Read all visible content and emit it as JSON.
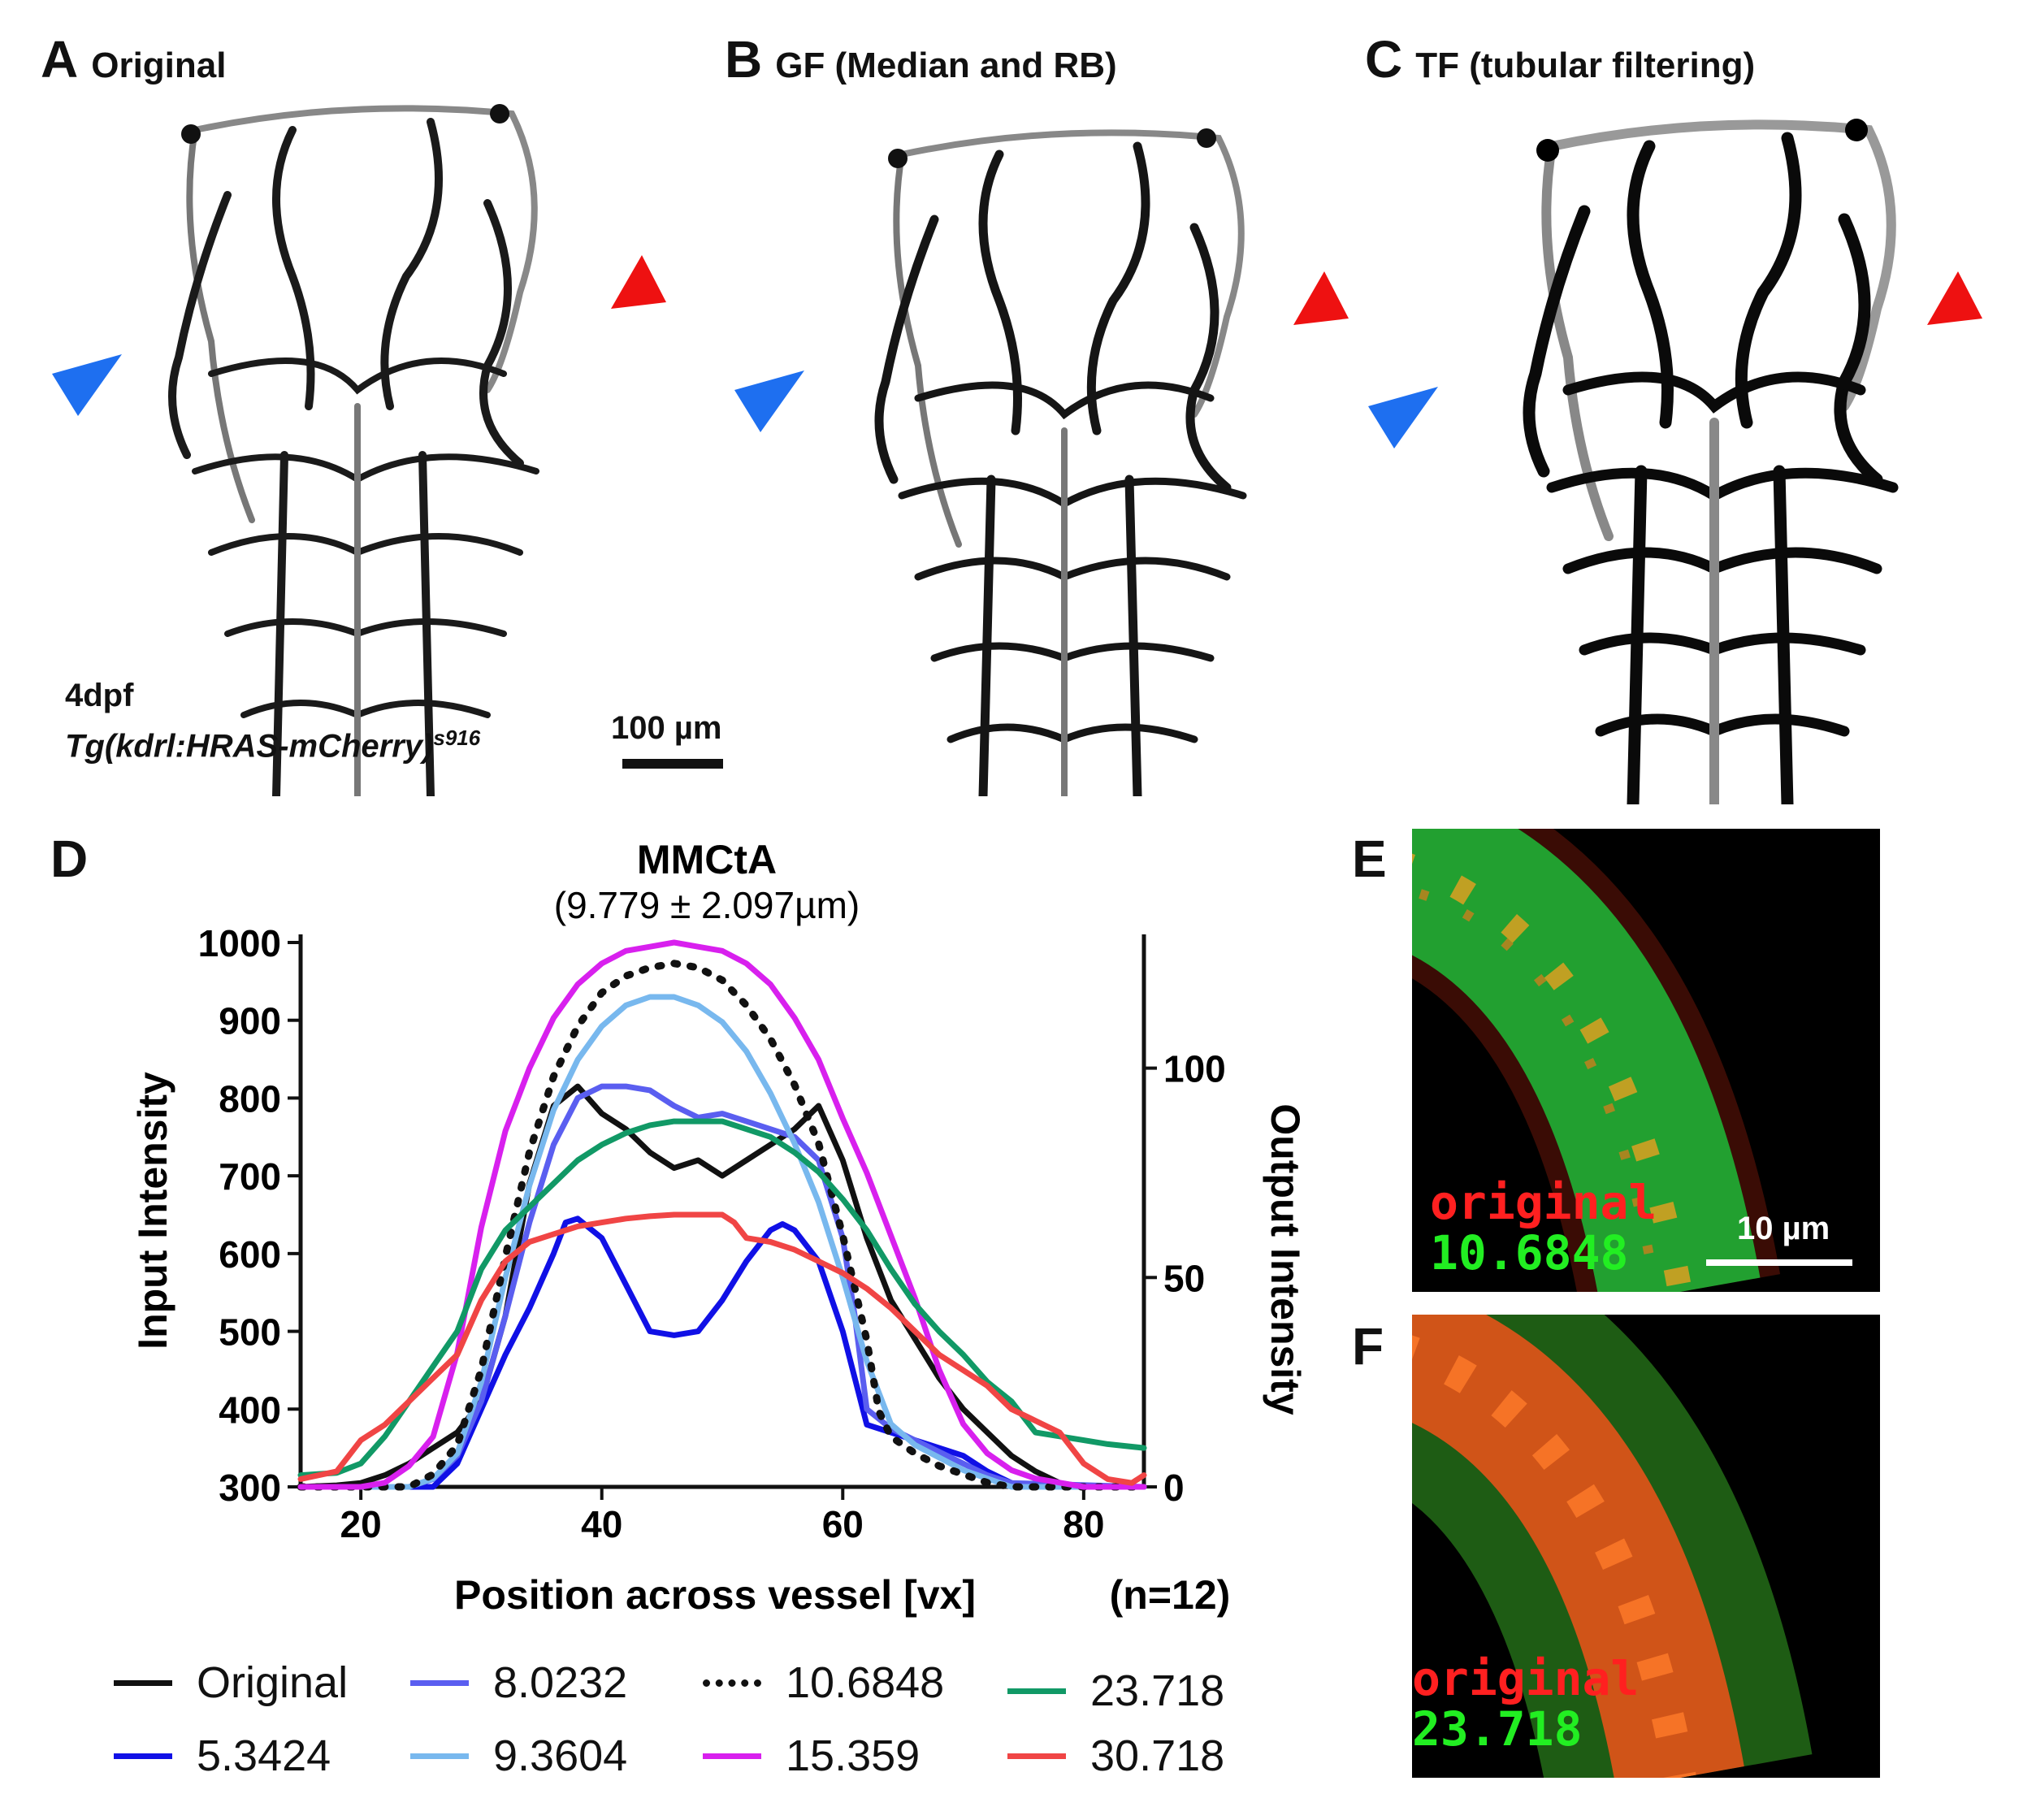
{
  "panels": {
    "a": {
      "letter": "A",
      "label": "Original"
    },
    "b": {
      "letter": "B",
      "label": "GF (Median and RB)"
    },
    "c": {
      "letter": "C",
      "label": "TF (tubular filtering)"
    },
    "d": {
      "letter": "D"
    },
    "e": {
      "letter": "E",
      "overlay_top": "original",
      "overlay_bottom": "10.6848",
      "scale_label": "10 µm"
    },
    "f": {
      "letter": "F",
      "overlay_top": "original",
      "overlay_bottom": "23.718"
    }
  },
  "panel_a_caption": {
    "stage": "4dpf",
    "transgene": "Tg(kdrl:HRAS-mCherry)",
    "allele": "s916",
    "scale_label": "100 µm"
  },
  "arrow_colors": {
    "blue": "#1e6ff0",
    "red": "#ee1111"
  },
  "chart_data": {
    "type": "line",
    "title": "MMCtA",
    "subtitle": "(9.779 ± 2.097µm)",
    "xlabel": "Position across vessel [vx]",
    "ylabel": "Input Intensity",
    "y2label": "Output Intensity",
    "note": "(n=12)",
    "xlim": [
      15,
      85
    ],
    "ylim": [
      300,
      1000
    ],
    "y2lim": [
      0,
      130
    ],
    "xticks": [
      20,
      40,
      60,
      80
    ],
    "yticks": [
      300,
      400,
      500,
      600,
      700,
      800,
      900,
      1000
    ],
    "y2ticks": [
      0,
      50,
      100
    ],
    "series": [
      {
        "name": "Original",
        "color": "#111111",
        "dash": "solid",
        "axis": "left",
        "x": [
          15,
          18,
          20,
          22,
          24,
          26,
          28,
          30,
          32,
          34,
          36,
          38,
          40,
          42,
          44,
          46,
          48,
          50,
          52,
          54,
          56,
          58,
          60,
          62,
          64,
          66,
          68,
          70,
          72,
          74,
          76,
          78,
          80,
          85
        ],
        "y": [
          300,
          302,
          305,
          315,
          330,
          350,
          370,
          410,
          520,
          690,
          790,
          815,
          780,
          760,
          730,
          710,
          720,
          700,
          720,
          740,
          760,
          790,
          720,
          620,
          540,
          490,
          440,
          400,
          370,
          340,
          320,
          305,
          300,
          300
        ]
      },
      {
        "name": "5.3424",
        "color": "#1010e6",
        "dash": "solid",
        "axis": "left",
        "x": [
          15,
          22,
          24,
          26,
          28,
          30,
          32,
          34,
          36,
          37,
          38,
          40,
          42,
          44,
          46,
          48,
          50,
          52,
          54,
          55,
          56,
          58,
          60,
          62,
          64,
          66,
          68,
          70,
          72,
          74,
          76,
          85
        ],
        "y": [
          300,
          300,
          300,
          300,
          330,
          400,
          470,
          530,
          600,
          640,
          645,
          620,
          560,
          500,
          495,
          500,
          540,
          590,
          630,
          638,
          630,
          590,
          500,
          380,
          370,
          360,
          350,
          340,
          320,
          305,
          300,
          300
        ]
      },
      {
        "name": "8.0232",
        "color": "#5a5ef0",
        "dash": "solid",
        "axis": "left",
        "x": [
          15,
          24,
          26,
          28,
          30,
          32,
          34,
          36,
          38,
          40,
          42,
          44,
          46,
          48,
          50,
          52,
          54,
          56,
          58,
          60,
          61,
          62,
          64,
          66,
          68,
          70,
          72,
          74,
          85
        ],
        "y": [
          300,
          300,
          310,
          340,
          410,
          520,
          640,
          740,
          800,
          815,
          815,
          810,
          790,
          775,
          780,
          770,
          760,
          750,
          720,
          620,
          520,
          400,
          375,
          360,
          345,
          330,
          315,
          305,
          300
        ]
      },
      {
        "name": "9.3604",
        "color": "#78b8ee",
        "dash": "solid",
        "axis": "right",
        "x": [
          15,
          24,
          26,
          28,
          30,
          32,
          34,
          36,
          38,
          40,
          42,
          44,
          46,
          48,
          50,
          52,
          54,
          56,
          58,
          60,
          62,
          64,
          66,
          68,
          70,
          72,
          74,
          85
        ],
        "y": [
          0,
          0,
          2,
          8,
          25,
          50,
          72,
          90,
          102,
          110,
          115,
          117,
          117,
          115,
          111,
          104,
          94,
          82,
          68,
          50,
          30,
          15,
          10,
          7,
          4,
          2,
          0,
          0
        ]
      },
      {
        "name": "10.6848",
        "color": "#111111",
        "dash": "dot",
        "axis": "right",
        "x": [
          15,
          24,
          26,
          28,
          30,
          32,
          34,
          36,
          38,
          40,
          42,
          44,
          46,
          48,
          50,
          52,
          54,
          56,
          58,
          60,
          62,
          63,
          64,
          66,
          68,
          70,
          72,
          74,
          85
        ],
        "y": [
          0,
          0,
          3,
          10,
          28,
          55,
          80,
          98,
          110,
          118,
          122,
          124,
          125,
          124,
          121,
          115,
          107,
          96,
          82,
          60,
          35,
          18,
          12,
          8,
          5,
          3,
          1,
          0,
          0
        ]
      },
      {
        "name": "15.359",
        "color": "#d820ee",
        "dash": "solid",
        "axis": "right",
        "x": [
          15,
          20,
          22,
          24,
          26,
          28,
          30,
          32,
          34,
          36,
          38,
          40,
          42,
          44,
          46,
          48,
          50,
          52,
          54,
          56,
          58,
          60,
          62,
          64,
          66,
          68,
          70,
          72,
          74,
          76,
          78,
          80,
          85
        ],
        "y": [
          0,
          0,
          1,
          5,
          12,
          32,
          62,
          85,
          100,
          112,
          120,
          125,
          128,
          129,
          130,
          129,
          128,
          125,
          120,
          112,
          102,
          88,
          75,
          60,
          45,
          28,
          15,
          8,
          4,
          2,
          1,
          0,
          0
        ]
      },
      {
        "name": "23.718",
        "color": "#119966",
        "dash": "solid",
        "axis": "left",
        "x": [
          15,
          18,
          20,
          22,
          24,
          26,
          28,
          30,
          32,
          34,
          36,
          38,
          40,
          42,
          44,
          46,
          48,
          50,
          52,
          54,
          56,
          58,
          60,
          62,
          64,
          66,
          68,
          70,
          72,
          74,
          76,
          78,
          80,
          82,
          85
        ],
        "y": [
          315,
          318,
          330,
          365,
          410,
          455,
          500,
          580,
          630,
          660,
          690,
          720,
          740,
          755,
          765,
          770,
          770,
          770,
          760,
          750,
          730,
          705,
          670,
          630,
          580,
          535,
          500,
          470,
          435,
          410,
          370,
          365,
          360,
          355,
          350
        ]
      },
      {
        "name": "30.718",
        "color": "#f04545",
        "dash": "solid",
        "axis": "left",
        "x": [
          15,
          18,
          19,
          20,
          22,
          24,
          26,
          28,
          30,
          32,
          34,
          36,
          38,
          40,
          42,
          44,
          46,
          48,
          50,
          51,
          52,
          54,
          56,
          58,
          60,
          62,
          64,
          66,
          68,
          70,
          72,
          74,
          76,
          78,
          80,
          82,
          84,
          85
        ],
        "y": [
          310,
          320,
          340,
          360,
          380,
          410,
          440,
          470,
          540,
          590,
          615,
          625,
          635,
          640,
          645,
          648,
          650,
          650,
          650,
          640,
          620,
          615,
          605,
          590,
          575,
          555,
          530,
          500,
          470,
          450,
          430,
          400,
          385,
          370,
          330,
          310,
          305,
          315
        ]
      }
    ]
  }
}
